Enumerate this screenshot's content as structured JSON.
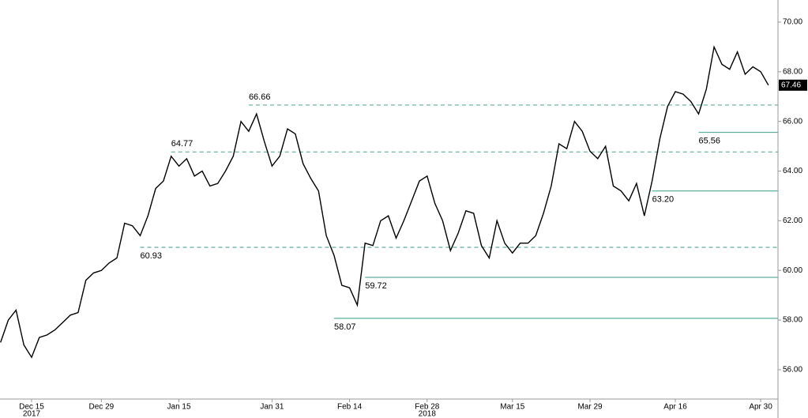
{
  "chart_data": {
    "type": "line",
    "categories": [
      null,
      null,
      null,
      null,
      "Dec 15",
      null,
      null,
      null,
      null,
      null,
      null,
      null,
      null,
      "Dec 29",
      null,
      null,
      null,
      null,
      null,
      null,
      null,
      null,
      null,
      "Jan 15",
      null,
      null,
      null,
      null,
      null,
      null,
      null,
      null,
      null,
      null,
      null,
      "Jan 31",
      null,
      null,
      null,
      null,
      null,
      null,
      null,
      null,
      null,
      "Feb 14",
      null,
      null,
      null,
      null,
      null,
      null,
      null,
      null,
      null,
      "Feb 28",
      null,
      null,
      null,
      null,
      null,
      null,
      null,
      null,
      null,
      null,
      "Mar 15",
      null,
      null,
      null,
      null,
      null,
      null,
      null,
      null,
      null,
      "Mar 29",
      null,
      null,
      null,
      null,
      null,
      null,
      null,
      null,
      null,
      null,
      "Apr 16",
      null,
      null,
      null,
      null,
      null,
      null,
      null,
      null,
      null,
      null,
      "Apr 30",
      null
    ],
    "year_labels": [
      {
        "text": "2017",
        "category": "Dec 15"
      },
      {
        "text": "2018",
        "category": "Feb 28"
      }
    ],
    "series": [
      {
        "color": "#000000",
        "values": [
          57.1,
          58.0,
          58.4,
          57.0,
          56.5,
          57.3,
          57.4,
          57.6,
          57.9,
          58.2,
          58.3,
          59.6,
          59.9,
          60.0,
          60.3,
          60.5,
          61.9,
          61.8,
          61.4,
          62.2,
          63.3,
          63.6,
          64.6,
          64.2,
          64.5,
          63.8,
          64.0,
          63.4,
          63.5,
          64.0,
          64.6,
          66.0,
          65.6,
          66.3,
          65.2,
          64.2,
          64.6,
          65.7,
          65.5,
          64.3,
          63.7,
          63.2,
          61.4,
          60.6,
          59.4,
          59.3,
          58.6,
          61.1,
          61.0,
          62.0,
          62.2,
          61.3,
          62.0,
          62.8,
          63.6,
          63.8,
          62.7,
          62.0,
          60.8,
          61.5,
          62.4,
          62.3,
          61.0,
          60.5,
          62.0,
          61.1,
          60.7,
          61.1,
          61.1,
          61.4,
          62.3,
          63.4,
          65.1,
          64.9,
          66.0,
          65.6,
          64.8,
          64.5,
          65.0,
          63.4,
          63.2,
          62.8,
          63.5,
          62.2,
          63.6,
          65.3,
          66.6,
          67.2,
          67.1,
          66.8,
          66.3,
          67.3,
          69.0,
          68.3,
          68.1,
          68.8,
          67.9,
          68.2,
          68.0,
          67.46
        ],
        "last_label": "67.46"
      }
    ],
    "levels": [
      {
        "value": 66.66,
        "label": "66.66",
        "from": 32,
        "style": "dashed",
        "label_side": "above"
      },
      {
        "value": 64.77,
        "label": "64.77",
        "from": 22,
        "style": "dashed",
        "label_side": "above"
      },
      {
        "value": 60.93,
        "label": "60.93",
        "from": 18,
        "style": "dashed",
        "label_side": "below"
      },
      {
        "value": 65.56,
        "label": "65.56",
        "from": 90,
        "style": "solid",
        "label_side": "below"
      },
      {
        "value": 63.2,
        "label": "63.20",
        "from": 84,
        "style": "solid",
        "label_side": "below"
      },
      {
        "value": 59.72,
        "label": "59.72",
        "from": 47,
        "style": "solid",
        "label_side": "below"
      },
      {
        "value": 58.07,
        "label": "58.07",
        "from": 43,
        "style": "solid",
        "label_side": "below"
      }
    ],
    "level_color": "#5fae9e",
    "ylim": [
      54.82,
      70.89
    ],
    "yticks": [
      {
        "value": 56,
        "label": "56.00"
      },
      {
        "value": 58,
        "label": "58.00"
      },
      {
        "value": 60,
        "label": "60.00"
      },
      {
        "value": 62,
        "label": "62.00"
      },
      {
        "value": 64,
        "label": "64.00"
      },
      {
        "value": 66,
        "label": "66.00"
      },
      {
        "value": 68,
        "label": "68.00"
      },
      {
        "value": 70,
        "label": "70.00"
      }
    ]
  }
}
